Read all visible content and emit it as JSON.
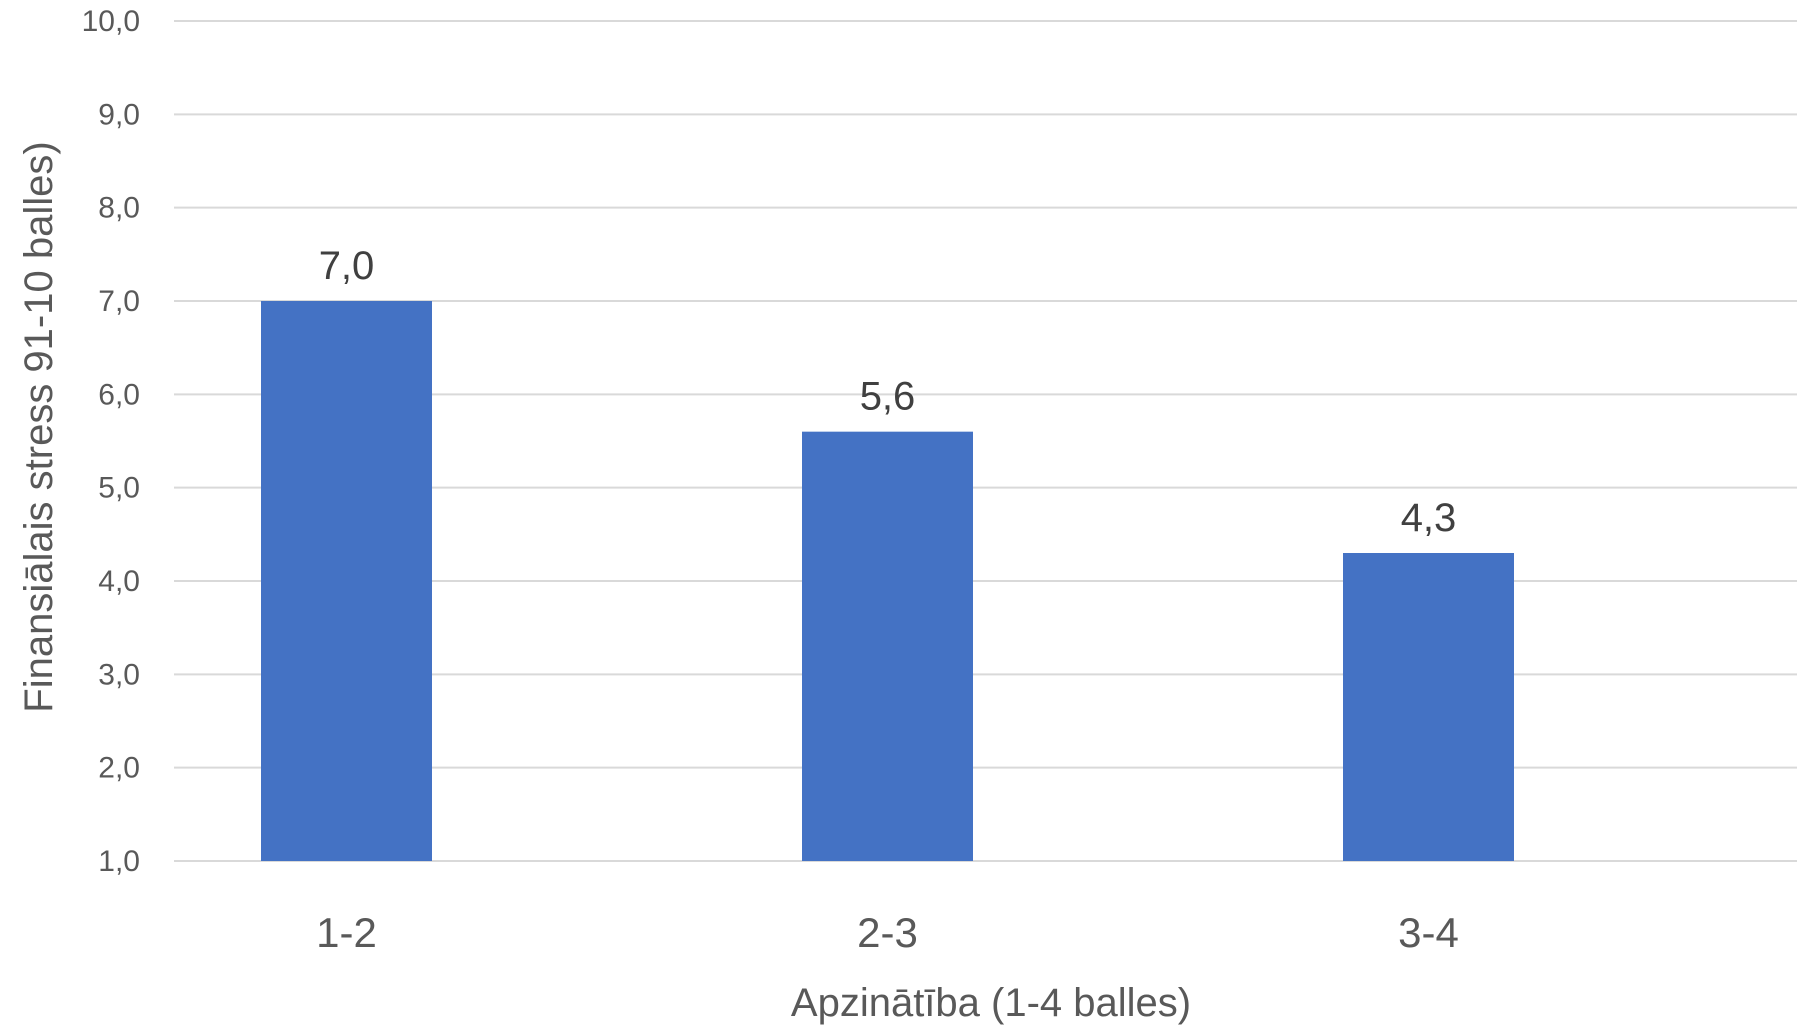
{
  "chart_data": {
    "type": "bar",
    "categories": [
      "1-2",
      "2-3",
      "3-4"
    ],
    "values": [
      7.0,
      5.6,
      4.3
    ],
    "data_labels": [
      "7,0",
      "5,6",
      "4,3"
    ],
    "xlabel": "Apzinātība (1-4 balles)",
    "ylabel": "Finansiālais stress 91-10 balles)",
    "ylim": [
      1,
      10
    ],
    "yticks": [
      "1,0",
      "2,0",
      "3,0",
      "4,0",
      "5,0",
      "6,0",
      "7,0",
      "8,0",
      "9,0",
      "10,0"
    ],
    "grid": true,
    "legend": "none",
    "bar_color": "#4472c4"
  }
}
